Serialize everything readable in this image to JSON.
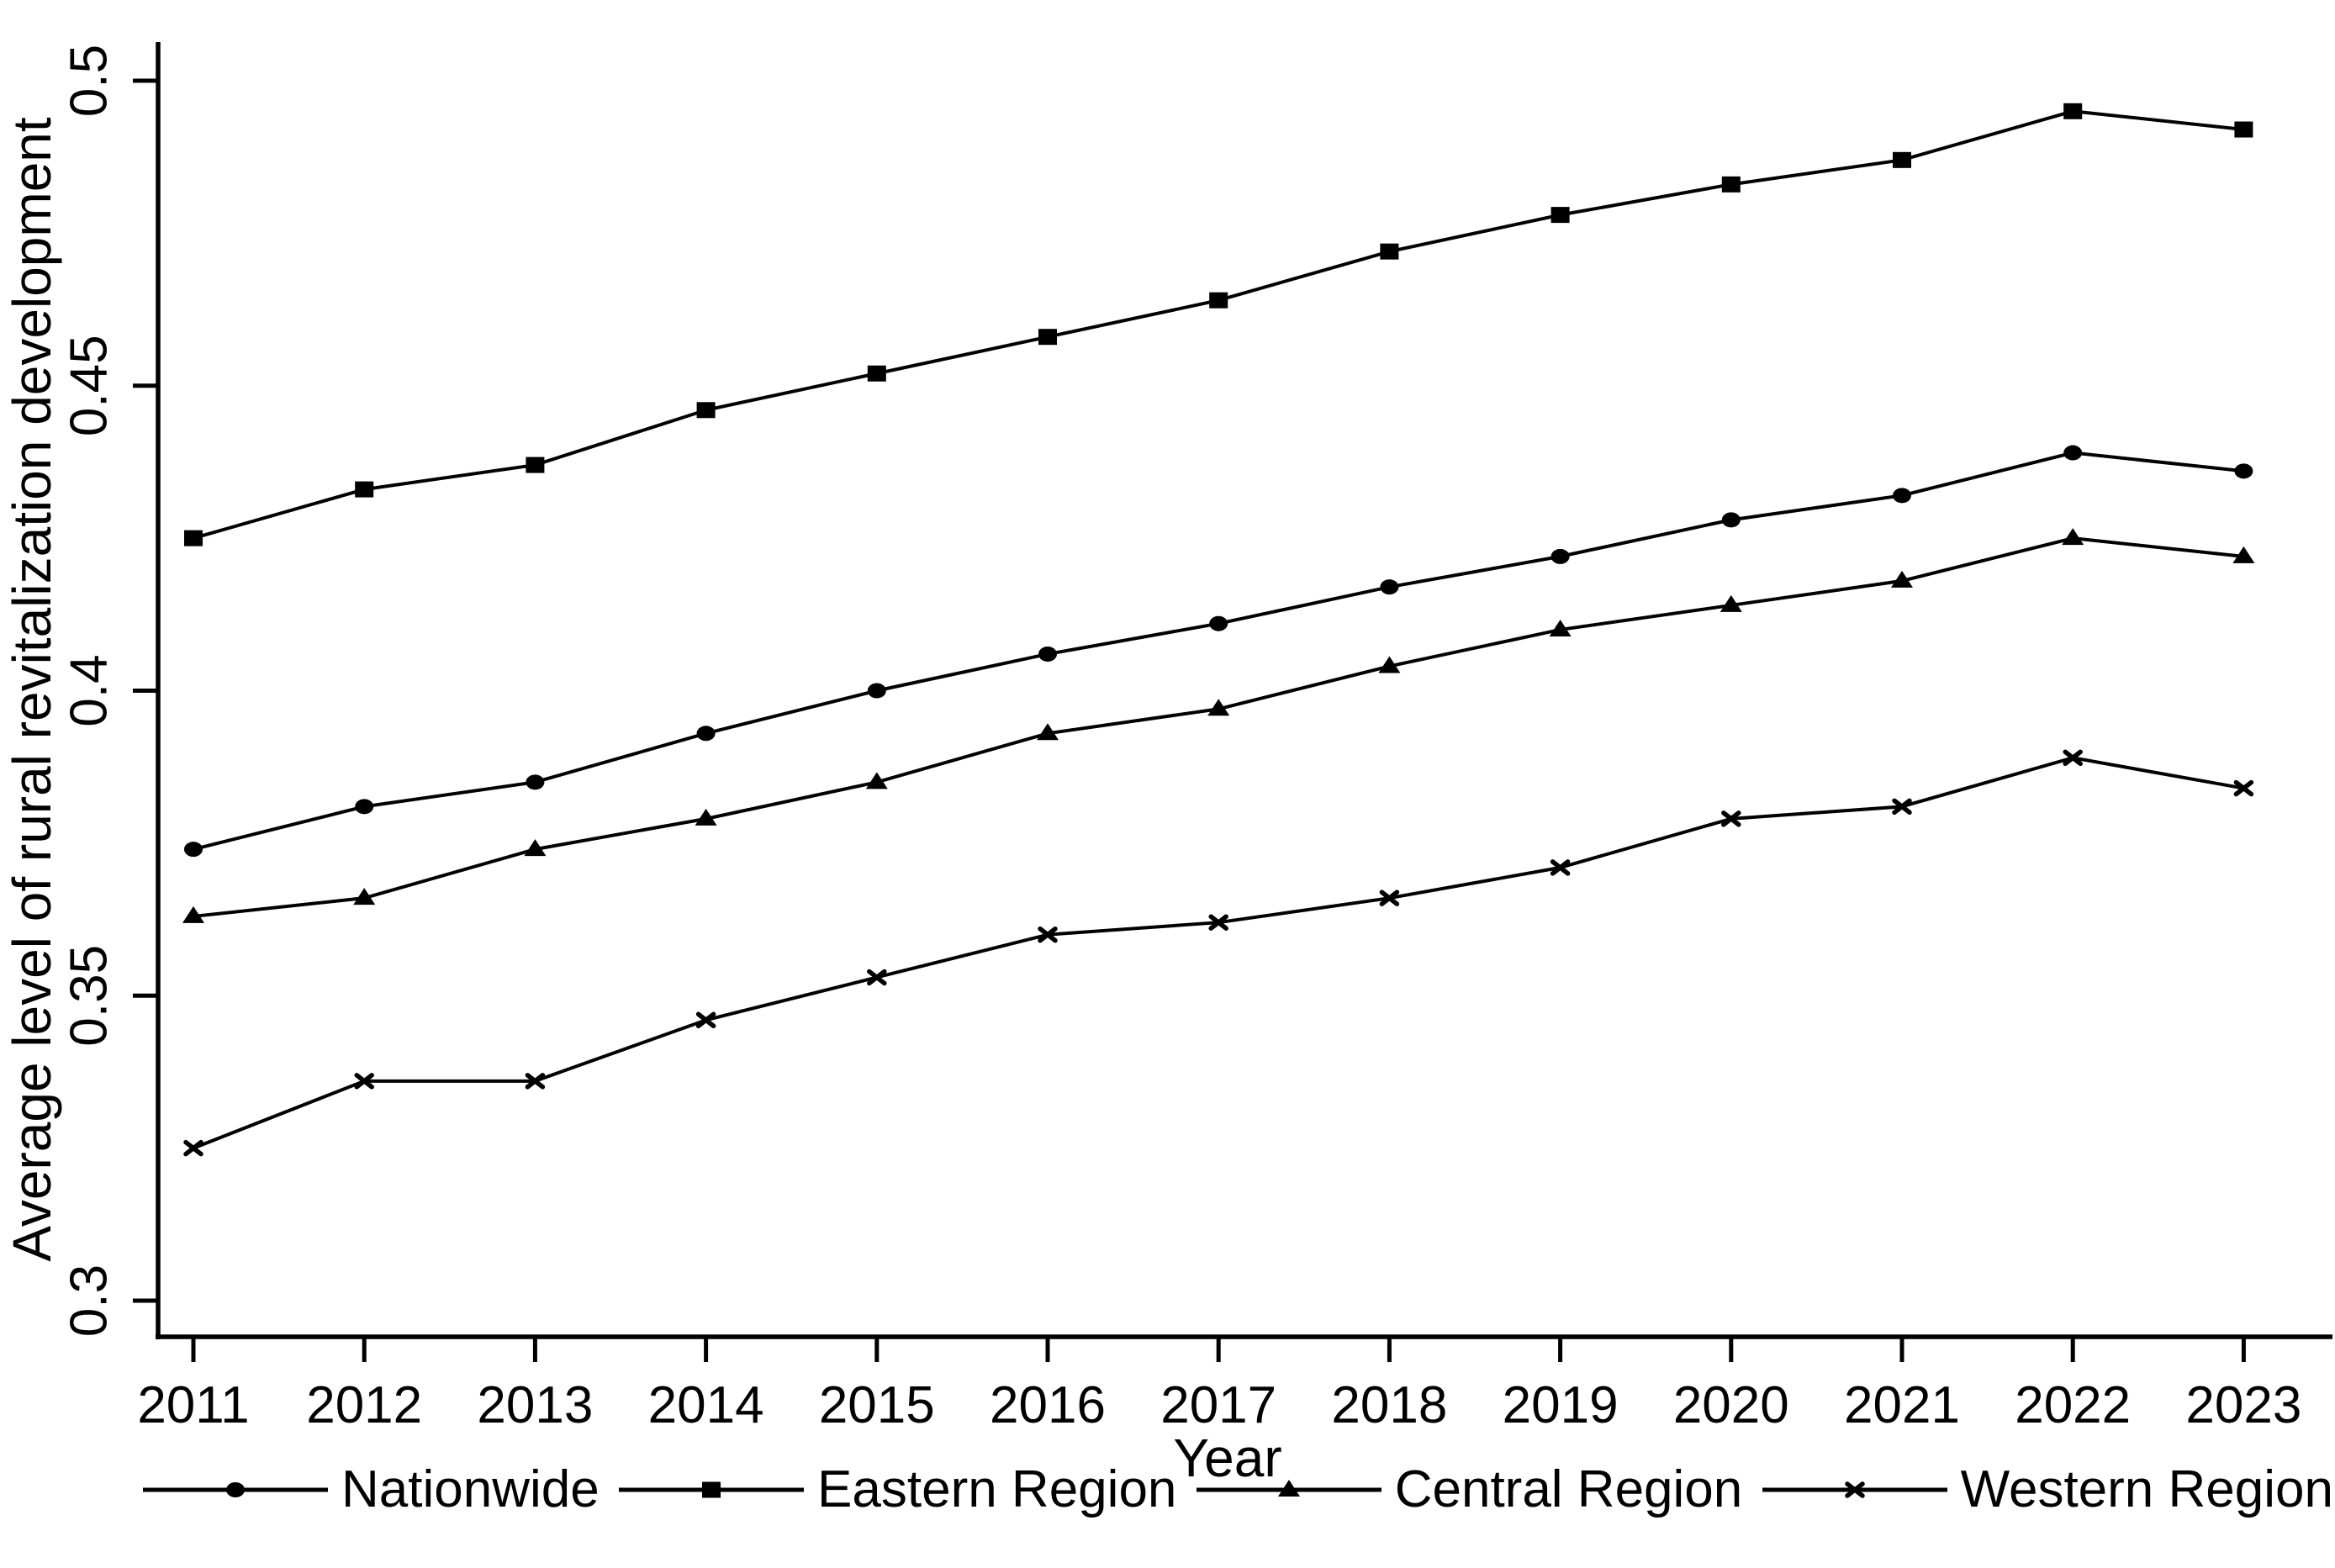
{
  "figure": {
    "background": "#ffffff",
    "ink": "#000000"
  },
  "chart_data": {
    "type": "line",
    "title": "",
    "xlabel": "Year",
    "ylabel": "Average level of rural revitalization development",
    "x": [
      2011,
      2012,
      2013,
      2014,
      2015,
      2016,
      2017,
      2018,
      2019,
      2020,
      2021,
      2022,
      2023
    ],
    "y_ticks": [
      0.3,
      0.35,
      0.4,
      0.45,
      0.5
    ],
    "ylim": [
      0.294,
      0.506
    ],
    "grid": false,
    "legend_position": "bottom",
    "series": [
      {
        "name": "Nationwide",
        "marker": "circle",
        "color": "#000000",
        "values": [
          0.374,
          0.381,
          0.385,
          0.393,
          0.4,
          0.406,
          0.411,
          0.417,
          0.422,
          0.428,
          0.432,
          0.439,
          0.436
        ]
      },
      {
        "name": "Eastern Region",
        "marker": "square",
        "color": "#000000",
        "values": [
          0.425,
          0.433,
          0.437,
          0.446,
          0.452,
          0.458,
          0.464,
          0.472,
          0.478,
          0.483,
          0.487,
          0.495,
          0.492
        ]
      },
      {
        "name": "Central Region",
        "marker": "triangle",
        "color": "#000000",
        "values": [
          0.363,
          0.366,
          0.374,
          0.379,
          0.385,
          0.393,
          0.397,
          0.404,
          0.41,
          0.414,
          0.418,
          0.425,
          0.422
        ]
      },
      {
        "name": "Western Region",
        "marker": "x",
        "color": "#000000",
        "values": [
          0.325,
          0.336,
          0.336,
          0.346,
          0.353,
          0.36,
          0.362,
          0.366,
          0.371,
          0.379,
          0.381,
          0.389,
          0.384
        ]
      }
    ]
  }
}
